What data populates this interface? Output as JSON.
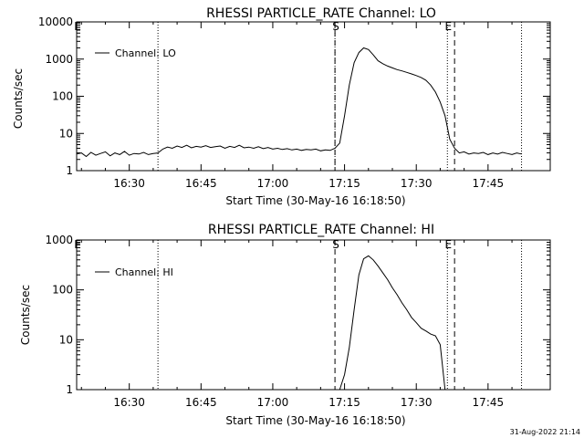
{
  "footer": {
    "timestamp": "31-Aug-2022 21:14"
  },
  "colors": {
    "line": "#000000",
    "background": "#ffffff"
  },
  "chart_data": [
    {
      "type": "line",
      "title": "RHESSI PARTICLE_RATE Channel: LO",
      "xlabel": "Start Time (30-May-16 16:18:50)",
      "ylabel": "Counts/sec",
      "yscale": "log",
      "ylim": [
        1,
        10000
      ],
      "xlim": [
        "16:19:00",
        "17:58:00"
      ],
      "x_ticks": [
        "16:30",
        "16:45",
        "17:00",
        "17:15",
        "17:30",
        "17:45"
      ],
      "y_ticks": [
        "1",
        "10",
        "100",
        "1000",
        "10000"
      ],
      "legend": "top-left",
      "markers": [
        {
          "time": "16:19:00",
          "label": "E",
          "style": "solid"
        },
        {
          "time": "16:36:00",
          "label": "",
          "style": "dotted"
        },
        {
          "time": "17:13:00",
          "label": "S",
          "style": "dashed"
        },
        {
          "time": "17:13:00",
          "label": "",
          "style": "dotted"
        },
        {
          "time": "17:36:30",
          "label": "E",
          "style": "dotted"
        },
        {
          "time": "17:38:00",
          "label": "",
          "style": "dashed"
        },
        {
          "time": "17:52:00",
          "label": "",
          "style": "dotted"
        }
      ],
      "series": [
        {
          "name": "Channel: LO",
          "x": [
            "16:19",
            "16:20",
            "16:21",
            "16:22",
            "16:23",
            "16:24",
            "16:25",
            "16:26",
            "16:27",
            "16:28",
            "16:29",
            "16:30",
            "16:31",
            "16:32",
            "16:33",
            "16:34",
            "16:35",
            "16:36",
            "16:37",
            "16:38",
            "16:39",
            "16:40",
            "16:41",
            "16:42",
            "16:43",
            "16:44",
            "16:45",
            "16:46",
            "16:47",
            "16:48",
            "16:49",
            "16:50",
            "16:51",
            "16:52",
            "16:53",
            "16:54",
            "16:55",
            "16:56",
            "16:57",
            "16:58",
            "16:59",
            "17:00",
            "17:01",
            "17:02",
            "17:03",
            "17:04",
            "17:05",
            "17:06",
            "17:07",
            "17:08",
            "17:09",
            "17:10",
            "17:11",
            "17:12",
            "17:13",
            "17:14",
            "17:15",
            "17:16",
            "17:17",
            "17:18",
            "17:19",
            "17:20",
            "17:21",
            "17:22",
            "17:23",
            "17:24",
            "17:25",
            "17:26",
            "17:27",
            "17:28",
            "17:29",
            "17:30",
            "17:31",
            "17:32",
            "17:33",
            "17:34",
            "17:35",
            "17:36",
            "17:37",
            "17:38",
            "17:39",
            "17:40",
            "17:41",
            "17:42",
            "17:43",
            "17:44",
            "17:45",
            "17:46",
            "17:47",
            "17:48",
            "17:49",
            "17:50",
            "17:51",
            "17:52"
          ],
          "values": [
            2.8,
            3,
            2.4,
            3.1,
            2.6,
            2.9,
            3.2,
            2.5,
            3,
            2.7,
            3.3,
            2.6,
            2.9,
            2.8,
            3.1,
            2.7,
            2.9,
            3,
            3.8,
            4.3,
            4,
            4.6,
            4.2,
            4.8,
            4.1,
            4.5,
            4.3,
            4.7,
            4.2,
            4.4,
            4.6,
            4,
            4.5,
            4.2,
            4.8,
            4.1,
            4.3,
            4,
            4.4,
            3.9,
            4.2,
            3.8,
            4,
            3.7,
            3.9,
            3.6,
            3.8,
            3.5,
            3.7,
            3.6,
            3.8,
            3.4,
            3.6,
            3.5,
            4,
            5.5,
            30,
            200,
            800,
            1500,
            2000,
            1800,
            1300,
            900,
            750,
            650,
            580,
            520,
            480,
            440,
            400,
            360,
            320,
            270,
            200,
            130,
            70,
            30,
            7,
            4,
            3,
            3.2,
            2.8,
            3,
            2.9,
            3.1,
            2.7,
            3,
            2.8,
            3.1,
            2.9,
            2.7,
            3,
            2.8
          ]
        }
      ]
    },
    {
      "type": "line",
      "title": "RHESSI PARTICLE_RATE Channel: HI",
      "xlabel": "Start Time (30-May-16 16:18:50)",
      "ylabel": "Counts/sec",
      "yscale": "log",
      "ylim": [
        1,
        1000
      ],
      "xlim": [
        "16:19:00",
        "17:58:00"
      ],
      "x_ticks": [
        "16:30",
        "16:45",
        "17:00",
        "17:15",
        "17:30",
        "17:45"
      ],
      "y_ticks": [
        "1",
        "10",
        "100",
        "1000"
      ],
      "legend": "top-left",
      "markers": [
        {
          "time": "16:19:00",
          "label": "E",
          "style": "solid"
        },
        {
          "time": "16:36:00",
          "label": "",
          "style": "dotted"
        },
        {
          "time": "17:13:00",
          "label": "S",
          "style": "dashed"
        },
        {
          "time": "17:36:30",
          "label": "E",
          "style": "dotted"
        },
        {
          "time": "17:38:00",
          "label": "",
          "style": "dashed"
        },
        {
          "time": "17:52:00",
          "label": "",
          "style": "dotted"
        }
      ],
      "series": [
        {
          "name": "Channel: HI",
          "x": [
            "17:14",
            "17:15",
            "17:16",
            "17:17",
            "17:18",
            "17:19",
            "17:20",
            "17:21",
            "17:22",
            "17:23",
            "17:24",
            "17:25",
            "17:26",
            "17:27",
            "17:28",
            "17:29",
            "17:30",
            "17:31",
            "17:32",
            "17:33",
            "17:34",
            "17:35",
            "17:36"
          ],
          "values": [
            1,
            2,
            7,
            40,
            200,
            420,
            480,
            400,
            300,
            220,
            160,
            110,
            80,
            55,
            40,
            28,
            22,
            17,
            15,
            13,
            12,
            8,
            1
          ]
        }
      ]
    }
  ]
}
